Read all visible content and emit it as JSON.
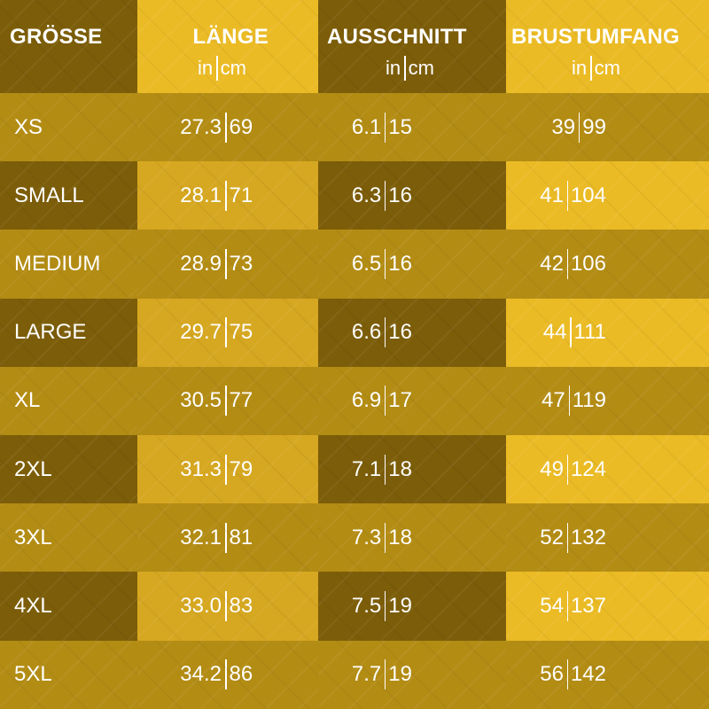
{
  "headers": {
    "size": "GRÖSSE",
    "length": "LÄNGE",
    "neckline": "AUSSCHNITT",
    "chest": "BRUSTUMFANG",
    "unit_in": "in",
    "unit_cm": "cm"
  },
  "rows": [
    {
      "size": "XS",
      "length_in": "27.3",
      "length_cm": "69",
      "neck_in": "6.1",
      "neck_cm": "15",
      "chest_in": "39",
      "chest_cm": "99"
    },
    {
      "size": "SMALL",
      "length_in": "28.1",
      "length_cm": "71",
      "neck_in": "6.3",
      "neck_cm": "16",
      "chest_in": "41",
      "chest_cm": "104"
    },
    {
      "size": "MEDIUM",
      "length_in": "28.9",
      "length_cm": "73",
      "neck_in": "6.5",
      "neck_cm": "16",
      "chest_in": "42",
      "chest_cm": "106"
    },
    {
      "size": "LARGE",
      "length_in": "29.7",
      "length_cm": "75",
      "neck_in": "6.6",
      "neck_cm": "16",
      "chest_in": "44",
      "chest_cm": "111"
    },
    {
      "size": "XL",
      "length_in": "30.5",
      "length_cm": "77",
      "neck_in": "6.9",
      "neck_cm": "17",
      "chest_in": "47",
      "chest_cm": "119"
    },
    {
      "size": "2XL",
      "length_in": "31.3",
      "length_cm": "79",
      "neck_in": "7.1",
      "neck_cm": "18",
      "chest_in": "49",
      "chest_cm": "124"
    },
    {
      "size": "3XL",
      "length_in": "32.1",
      "length_cm": "81",
      "neck_in": "7.3",
      "neck_cm": "18",
      "chest_in": "52",
      "chest_cm": "132"
    },
    {
      "size": "4XL",
      "length_in": "33.0",
      "length_cm": "83",
      "neck_in": "7.5",
      "neck_cm": "19",
      "chest_in": "54",
      "chest_cm": "137"
    },
    {
      "size": "5XL",
      "length_in": "34.2",
      "length_cm": "86",
      "neck_in": "7.7",
      "neck_cm": "19",
      "chest_in": "56",
      "chest_cm": "142"
    }
  ],
  "colors": {
    "dark": "#7c5d09",
    "mid": "#b38c14",
    "light": "#d6a720",
    "bright": "#ebbb25",
    "text": "#ffffff"
  }
}
